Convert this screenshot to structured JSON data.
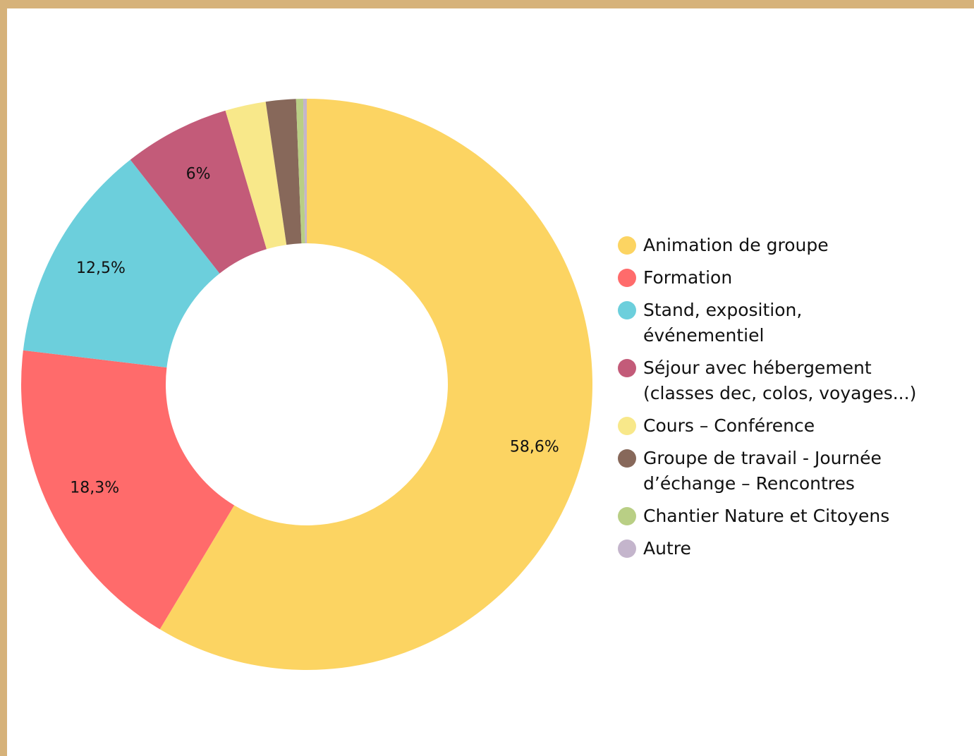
{
  "chart_data": {
    "type": "donut",
    "categories": [
      "Animation de groupe",
      "Formation",
      "Stand, exposition, événementiel",
      "Séjour avec hébergement (classes dec, colos, voyages...)",
      "Cours – Conférence",
      "Groupe de travail - Journée d’échange – Rencontres",
      "Chantier Nature et Citoyens",
      "Autre"
    ],
    "values": [
      58.6,
      18.3,
      12.5,
      6,
      2.3,
      1.7,
      0.4,
      0.2
    ],
    "value_labels": [
      "58,6%",
      "18,3%",
      "12,5%",
      "6%",
      null,
      null,
      null,
      null
    ],
    "colors": [
      "#fcd462",
      "#ff6b6b",
      "#6ccfdc",
      "#c35b79",
      "#f8e88a",
      "#87685a",
      "#b9cf85",
      "#c4b5cc"
    ],
    "legend": "right"
  }
}
